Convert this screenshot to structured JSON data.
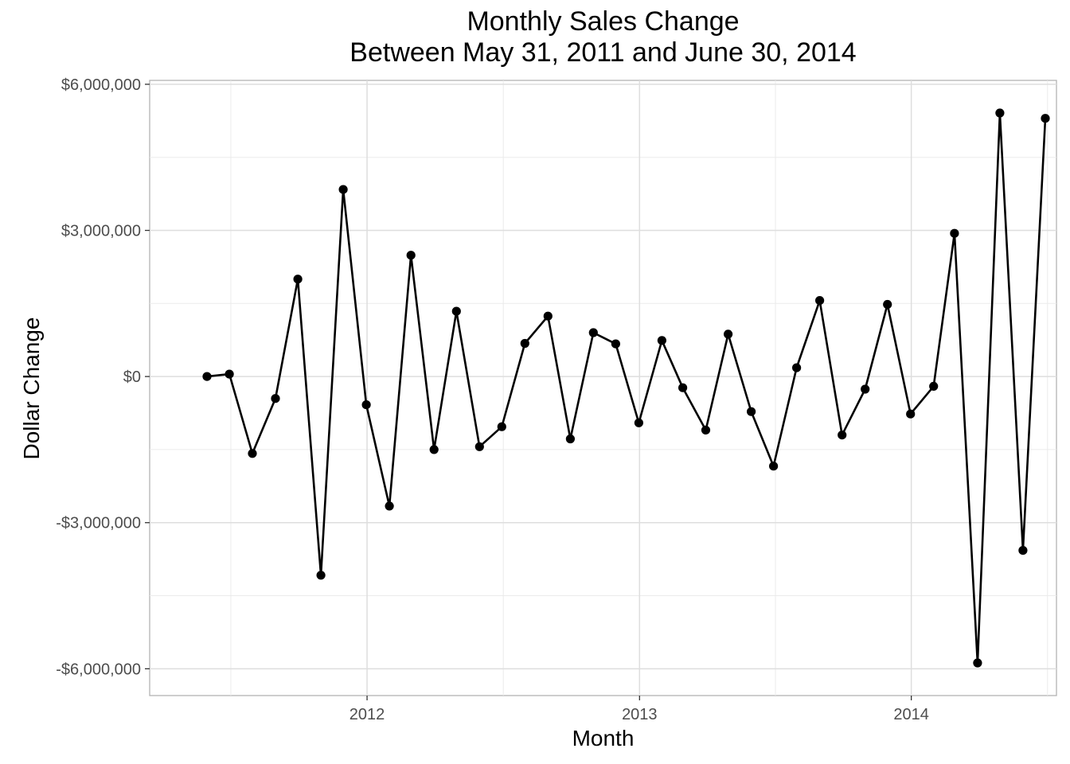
{
  "chart_data": {
    "type": "line",
    "title": "Monthly Sales Change",
    "subtitle": "Between May 31, 2011 and  June 30, 2014",
    "xlabel": "Month",
    "ylabel": "Dollar Change",
    "x_tick_labels": [
      "2012",
      "2013",
      "2014"
    ],
    "x_tick_values": [
      "2012-01-01",
      "2013-01-01",
      "2014-01-01"
    ],
    "y_tick_labels": [
      "$6,000,000",
      "$3,000,000",
      "$0",
      "-$3,000,000",
      "-$6,000,000"
    ],
    "y_tick_values": [
      6000000,
      3000000,
      0,
      -3000000,
      -6000000
    ],
    "xlim": [
      "2011-03-15",
      "2014-07-15"
    ],
    "ylim": [
      -6550000,
      6080000
    ],
    "grid": true,
    "legend": "none",
    "markers": true,
    "line_color": "#000000",
    "x": [
      "2011-05-31",
      "2011-06-30",
      "2011-07-31",
      "2011-08-31",
      "2011-09-30",
      "2011-10-31",
      "2011-11-30",
      "2011-12-31",
      "2012-01-31",
      "2012-02-29",
      "2012-03-31",
      "2012-04-30",
      "2012-05-31",
      "2012-06-30",
      "2012-07-31",
      "2012-08-31",
      "2012-09-30",
      "2012-10-31",
      "2012-11-30",
      "2012-12-31",
      "2013-01-31",
      "2013-02-28",
      "2013-03-31",
      "2013-04-30",
      "2013-05-31",
      "2013-06-30",
      "2013-07-31",
      "2013-08-31",
      "2013-09-30",
      "2013-10-31",
      "2013-11-30",
      "2013-12-31",
      "2014-01-31",
      "2014-02-28",
      "2014-03-31",
      "2014-04-30",
      "2014-05-31",
      "2014-06-30"
    ],
    "values": [
      0,
      50000,
      -1580000,
      -450000,
      2000000,
      -4080000,
      3840000,
      -580000,
      -2660000,
      2490000,
      -1500000,
      1340000,
      -1440000,
      -1030000,
      680000,
      1240000,
      -1280000,
      900000,
      670000,
      -950000,
      740000,
      -230000,
      -1100000,
      870000,
      -720000,
      -1840000,
      180000,
      1560000,
      -1200000,
      -260000,
      1480000,
      -770000,
      -200000,
      2940000,
      -5880000,
      5410000,
      -3570000,
      5300000
    ]
  }
}
